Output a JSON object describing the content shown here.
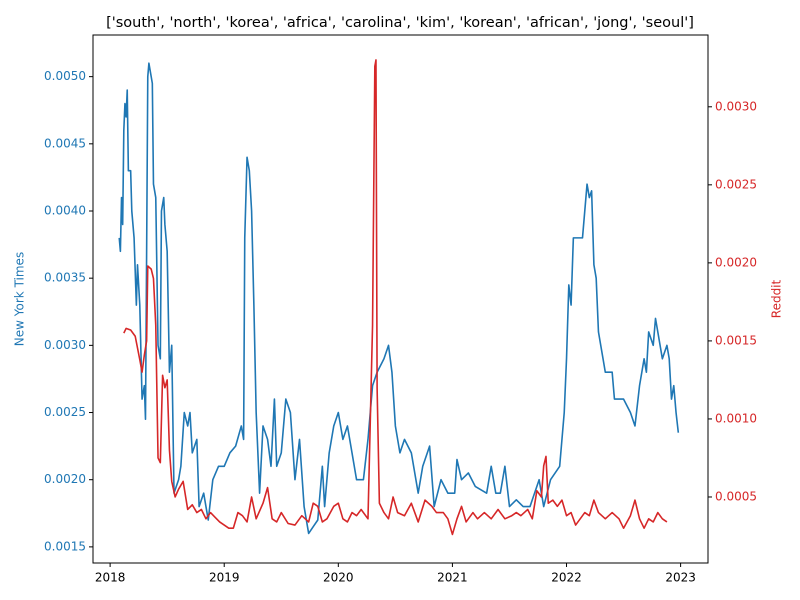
{
  "chart_data": {
    "type": "line",
    "title": "['south', 'north', 'korea', 'africa', 'carolina', 'kim', 'korean', 'african', 'jong', 'seoul']",
    "ylabel": "New York Times",
    "y2label": "Reddit",
    "xlim": [
      2017.85,
      2023.24
    ],
    "xticks": [
      2018,
      2019,
      2020,
      2021,
      2022,
      2023
    ],
    "ylim": [
      0.00138,
      0.00531
    ],
    "yticks": [
      0.0015,
      {
        "value": 0.002,
        "label": "0.0020"
      },
      0.0025,
      {
        "value": 0.003,
        "label": "0.0030"
      },
      0.0035,
      {
        "value": 0.004,
        "label": "0.0040"
      },
      0.0045,
      {
        "value": 0.005,
        "label": "0.0050"
      }
    ],
    "y2lim": [
      7.7e-05,
      0.00346
    ],
    "y2ticks": [
      0.0005,
      {
        "value": 0.001,
        "label": "0.0010"
      },
      0.0015,
      {
        "value": 0.002,
        "label": "0.0020"
      },
      0.0025,
      {
        "value": 0.003,
        "label": "0.0030"
      }
    ],
    "grid": false,
    "series": [
      {
        "axis": "y",
        "color": "#1f77b4",
        "x": [
          2018.08,
          2018.09,
          2018.1,
          2018.11,
          2018.12,
          2018.13,
          2018.14,
          2018.15,
          2018.16,
          2018.18,
          2018.19,
          2018.21,
          2018.23,
          2018.24,
          2018.26,
          2018.28,
          2018.3,
          2018.31,
          2018.32,
          2018.33,
          2018.34,
          2018.36,
          2018.37,
          2018.38,
          2018.4,
          2018.42,
          2018.44,
          2018.45,
          2018.47,
          2018.48,
          2018.5,
          2018.52,
          2018.54,
          2018.56,
          2018.6,
          2018.62,
          2018.65,
          2018.68,
          2018.7,
          2018.72,
          2018.76,
          2018.78,
          2018.82,
          2018.86,
          2018.9,
          2018.95,
          2019.0,
          2019.05,
          2019.1,
          2019.15,
          2019.17,
          2019.18,
          2019.2,
          2019.22,
          2019.24,
          2019.26,
          2019.28,
          2019.31,
          2019.34,
          2019.38,
          2019.41,
          2019.44,
          2019.46,
          2019.5,
          2019.54,
          2019.58,
          2019.62,
          2019.66,
          2019.7,
          2019.74,
          2019.78,
          2019.82,
          2019.86,
          2019.88,
          2019.92,
          2019.96,
          2020.0,
          2020.04,
          2020.08,
          2020.12,
          2020.16,
          2020.22,
          2020.26,
          2020.3,
          2020.34,
          2020.4,
          2020.44,
          2020.47,
          2020.5,
          2020.54,
          2020.58,
          2020.64,
          2020.7,
          2020.74,
          2020.8,
          2020.84,
          2020.9,
          2020.96,
          2021.02,
          2021.04,
          2021.08,
          2021.14,
          2021.2,
          2021.3,
          2021.34,
          2021.38,
          2021.42,
          2021.46,
          2021.5,
          2021.56,
          2021.62,
          2021.68,
          2021.72,
          2021.76,
          2021.8,
          2021.86,
          2021.94,
          2021.98,
          2022.0,
          2022.02,
          2022.04,
          2022.06,
          2022.14,
          2022.16,
          2022.18,
          2022.2,
          2022.22,
          2022.24,
          2022.26,
          2022.28,
          2022.3,
          2022.32,
          2022.34,
          2022.4,
          2022.42,
          2022.5,
          2022.56,
          2022.6,
          2022.64,
          2022.68,
          2022.7,
          2022.72,
          2022.76,
          2022.78,
          2022.8,
          2022.84,
          2022.88,
          2022.9,
          2022.92,
          2022.94,
          2022.96,
          2022.98
        ],
        "values": [
          0.0038,
          0.0037,
          0.0041,
          0.0039,
          0.0046,
          0.0048,
          0.0047,
          0.0049,
          0.0043,
          0.0043,
          0.004,
          0.0038,
          0.0033,
          0.0036,
          0.0033,
          0.0026,
          0.0027,
          0.00245,
          0.0037,
          0.005,
          0.0051,
          0.005,
          0.00495,
          0.0042,
          0.0041,
          0.003,
          0.0029,
          0.004,
          0.0041,
          0.0039,
          0.0037,
          0.0028,
          0.003,
          0.0019,
          0.002,
          0.0021,
          0.0025,
          0.0024,
          0.0025,
          0.0022,
          0.0023,
          0.0018,
          0.0019,
          0.0017,
          0.002,
          0.0021,
          0.0021,
          0.0022,
          0.00225,
          0.0024,
          0.0023,
          0.0038,
          0.0044,
          0.0043,
          0.004,
          0.0033,
          0.0025,
          0.0019,
          0.0024,
          0.0023,
          0.0021,
          0.0026,
          0.0021,
          0.0022,
          0.0026,
          0.0025,
          0.002,
          0.0023,
          0.0018,
          0.0016,
          0.00165,
          0.0017,
          0.0021,
          0.0018,
          0.0022,
          0.0024,
          0.0025,
          0.0023,
          0.0024,
          0.0022,
          0.002,
          0.002,
          0.0023,
          0.0027,
          0.0028,
          0.0029,
          0.003,
          0.0028,
          0.0024,
          0.0022,
          0.0023,
          0.0022,
          0.0019,
          0.0021,
          0.00225,
          0.0018,
          0.002,
          0.0019,
          0.0019,
          0.00215,
          0.002,
          0.00205,
          0.00195,
          0.0019,
          0.0021,
          0.0019,
          0.0019,
          0.0021,
          0.0018,
          0.00185,
          0.0018,
          0.0018,
          0.0019,
          0.002,
          0.0018,
          0.002,
          0.0021,
          0.0025,
          0.0029,
          0.00345,
          0.0033,
          0.0038,
          0.0038,
          0.004,
          0.0042,
          0.0041,
          0.00415,
          0.0036,
          0.0035,
          0.0031,
          0.003,
          0.0029,
          0.0028,
          0.0028,
          0.0026,
          0.0026,
          0.0025,
          0.0024,
          0.0027,
          0.0029,
          0.0028,
          0.0031,
          0.003,
          0.0032,
          0.0031,
          0.0029,
          0.003,
          0.0029,
          0.0026,
          0.0027,
          0.0025,
          0.00235
        ]
      },
      {
        "axis": "y2",
        "color": "#d62728",
        "x": [
          2018.12,
          2018.14,
          2018.18,
          2018.22,
          2018.26,
          2018.28,
          2018.3,
          2018.32,
          2018.33,
          2018.36,
          2018.38,
          2018.4,
          2018.42,
          2018.44,
          2018.46,
          2018.48,
          2018.5,
          2018.52,
          2018.54,
          2018.57,
          2018.6,
          2018.64,
          2018.68,
          2018.72,
          2018.76,
          2018.8,
          2018.84,
          2018.88,
          2018.92,
          2018.96,
          2019.0,
          2019.04,
          2019.08,
          2019.12,
          2019.16,
          2019.2,
          2019.24,
          2019.28,
          2019.34,
          2019.38,
          2019.42,
          2019.46,
          2019.5,
          2019.56,
          2019.62,
          2019.68,
          2019.74,
          2019.78,
          2019.82,
          2019.86,
          2019.9,
          2019.96,
          2020.0,
          2020.04,
          2020.08,
          2020.12,
          2020.16,
          2020.2,
          2020.26,
          2020.3,
          2020.32,
          2020.33,
          2020.34,
          2020.36,
          2020.4,
          2020.44,
          2020.48,
          2020.52,
          2020.58,
          2020.64,
          2020.7,
          2020.76,
          2020.82,
          2020.86,
          2020.92,
          2020.96,
          2021.0,
          2021.04,
          2021.08,
          2021.12,
          2021.18,
          2021.22,
          2021.28,
          2021.34,
          2021.4,
          2021.46,
          2021.52,
          2021.56,
          2021.6,
          2021.66,
          2021.7,
          2021.74,
          2021.78,
          2021.8,
          2021.82,
          2021.84,
          2021.88,
          2021.92,
          2021.96,
          2022.0,
          2022.04,
          2022.08,
          2022.12,
          2022.16,
          2022.2,
          2022.24,
          2022.28,
          2022.34,
          2022.4,
          2022.46,
          2022.5,
          2022.56,
          2022.6,
          2022.64,
          2022.68,
          2022.72,
          2022.76,
          2022.8,
          2022.84,
          2022.88
        ],
        "values": [
          0.00155,
          0.00158,
          0.00157,
          0.00153,
          0.00138,
          0.0013,
          0.00141,
          0.0015,
          0.00198,
          0.00196,
          0.0019,
          0.0016,
          0.00075,
          0.00072,
          0.00128,
          0.0012,
          0.00125,
          0.0008,
          0.0006,
          0.0005,
          0.00055,
          0.0006,
          0.00042,
          0.00045,
          0.0004,
          0.00042,
          0.00036,
          0.0004,
          0.00037,
          0.00034,
          0.00032,
          0.0003,
          0.0003,
          0.0004,
          0.00038,
          0.00034,
          0.0005,
          0.00036,
          0.00046,
          0.00056,
          0.00036,
          0.00034,
          0.0004,
          0.00033,
          0.00032,
          0.00038,
          0.00034,
          0.00046,
          0.00044,
          0.00034,
          0.00036,
          0.00044,
          0.00046,
          0.00036,
          0.00034,
          0.0004,
          0.00038,
          0.00042,
          0.00036,
          0.0016,
          0.00326,
          0.0033,
          0.0012,
          0.00046,
          0.0004,
          0.00036,
          0.0005,
          0.0004,
          0.00038,
          0.00046,
          0.00034,
          0.00048,
          0.00044,
          0.0004,
          0.0004,
          0.00036,
          0.00026,
          0.00036,
          0.00044,
          0.00034,
          0.0004,
          0.00036,
          0.0004,
          0.00036,
          0.00042,
          0.00036,
          0.00038,
          0.0004,
          0.00038,
          0.00042,
          0.00036,
          0.00054,
          0.0005,
          0.0007,
          0.00076,
          0.00046,
          0.00048,
          0.00044,
          0.00048,
          0.00038,
          0.0004,
          0.00032,
          0.00036,
          0.0004,
          0.00038,
          0.00048,
          0.0004,
          0.00036,
          0.0004,
          0.00036,
          0.0003,
          0.00038,
          0.00048,
          0.00036,
          0.0003,
          0.00036,
          0.00034,
          0.0004,
          0.00036,
          0.00034
        ]
      }
    ]
  }
}
